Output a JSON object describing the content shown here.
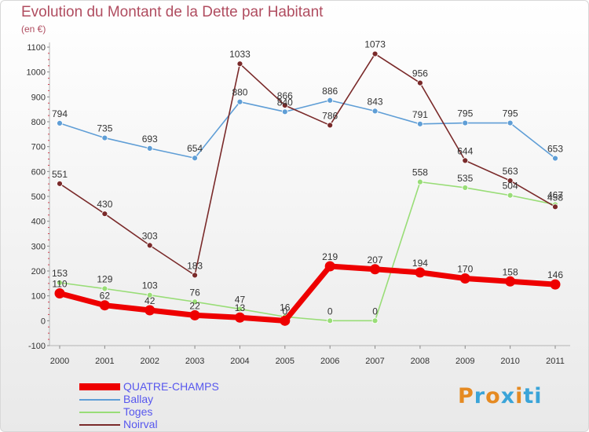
{
  "chart_data": {
    "type": "line",
    "title": "Evolution du Montant de la Dette par Habitant",
    "subtitle": "(en €)",
    "categories": [
      "2000",
      "2001",
      "2002",
      "2003",
      "2004",
      "2005",
      "2006",
      "2007",
      "2008",
      "2009",
      "2010",
      "2011"
    ],
    "ylim": [
      -100,
      1100
    ],
    "yticks": [
      -100,
      0,
      100,
      200,
      300,
      400,
      500,
      600,
      700,
      800,
      900,
      1000,
      1100
    ],
    "grid": false,
    "legend_position": "bottom-left",
    "series": [
      {
        "name": "QUATRE-CHAMPS",
        "color": "#ee0000",
        "thick": true,
        "values": [
          110,
          62,
          42,
          22,
          13,
          0,
          219,
          207,
          194,
          170,
          158,
          146
        ],
        "labels": [
          "110",
          "62",
          "42",
          "22",
          "13",
          "0",
          "219",
          "207",
          "194",
          "170",
          "158",
          "146"
        ]
      },
      {
        "name": "Ballay",
        "color": "#5f9ed6",
        "values": [
          794,
          735,
          693,
          654,
          880,
          840,
          886,
          843,
          791,
          795,
          795,
          653
        ],
        "labels": [
          "794",
          "735",
          "693",
          "654",
          "880",
          "840",
          "886",
          "843",
          "791",
          "795",
          "795",
          "653"
        ]
      },
      {
        "name": "Toges",
        "color": "#99dd77",
        "values": [
          153,
          129,
          103,
          76,
          47,
          16,
          0,
          0,
          558,
          535,
          504,
          467
        ],
        "labels": [
          "153",
          "129",
          "103",
          "76",
          "47",
          "16",
          "0",
          "0",
          "558",
          "535",
          "504",
          "467"
        ]
      },
      {
        "name": "Noirval",
        "color": "#7a2a2a",
        "values": [
          551,
          430,
          303,
          183,
          1033,
          866,
          786,
          1073,
          956,
          644,
          563,
          458
        ],
        "labels": [
          "551",
          "430",
          "303",
          "183",
          "1033",
          "866",
          "786",
          "1073",
          "956",
          "644",
          "563",
          "458"
        ]
      }
    ]
  },
  "logo": {
    "text": "Proxiti",
    "letters": [
      "P",
      "r",
      "o",
      "x",
      "i",
      "ti"
    ]
  }
}
